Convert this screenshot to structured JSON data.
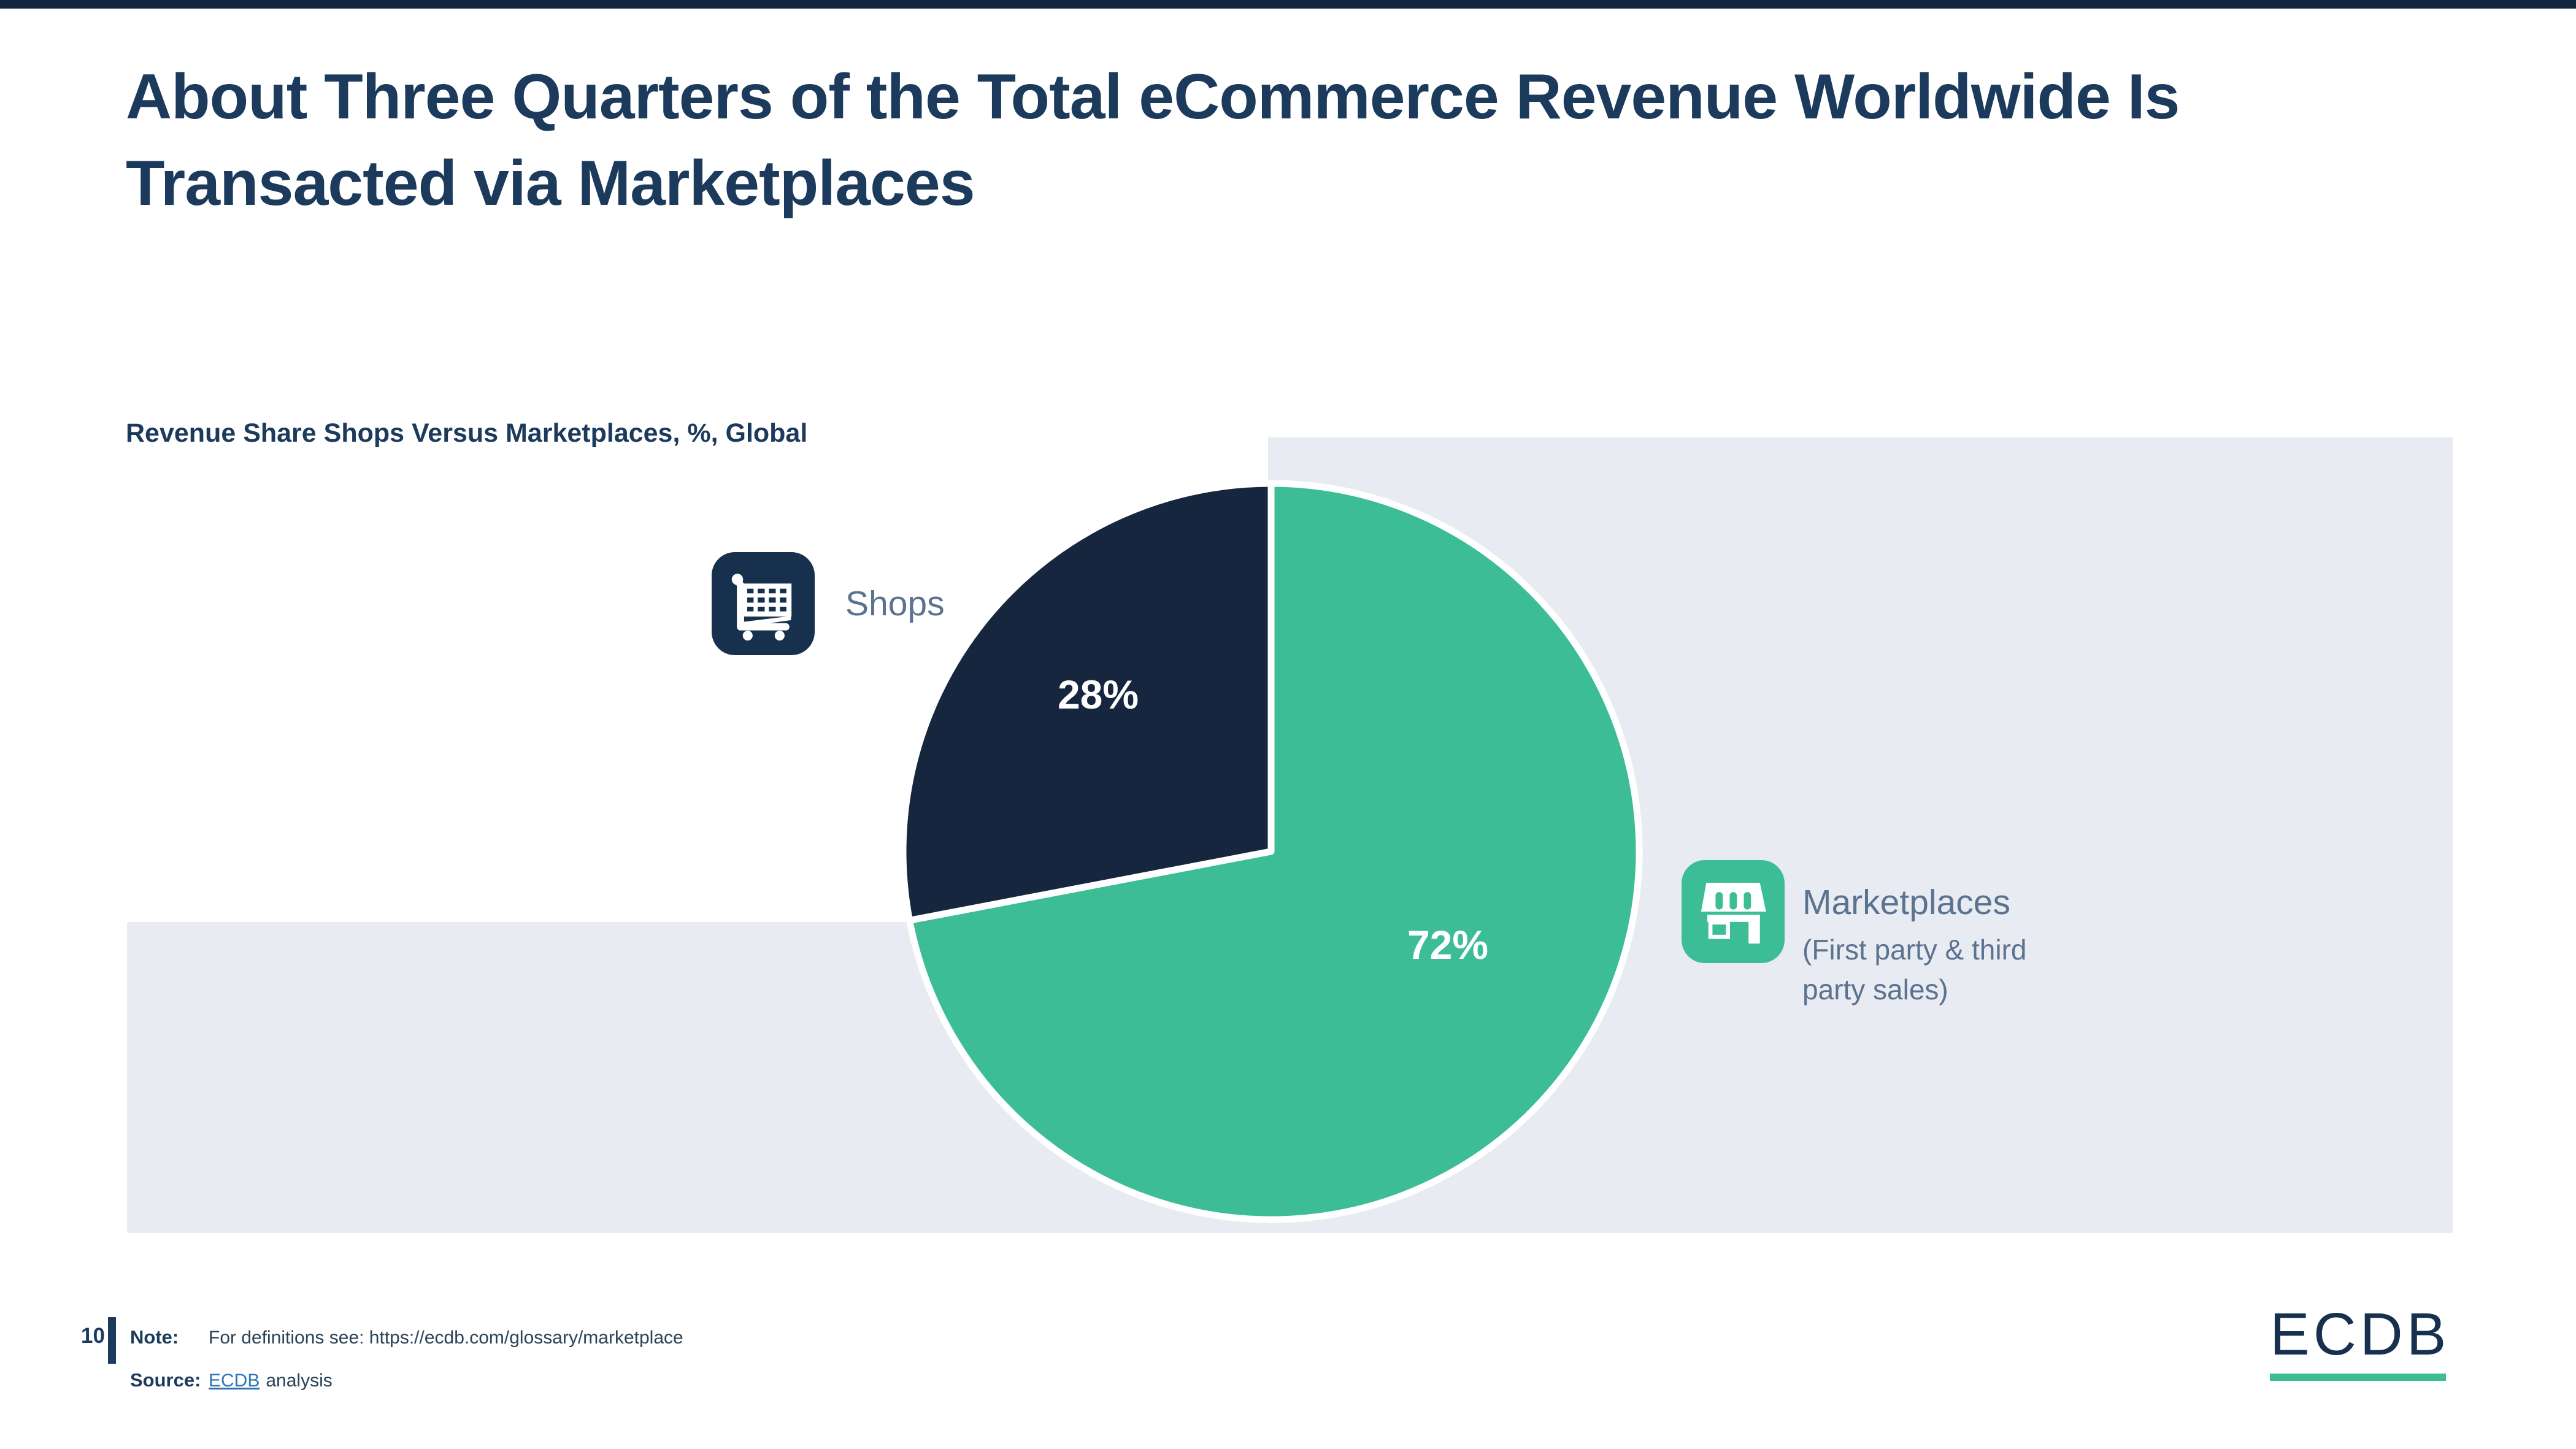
{
  "page": {
    "top_bar_color": "#13283f",
    "title_line1": "About Three Quarters of the Total eCommerce Revenue Worldwide Is",
    "title_line2": "Transacted via Marketplaces",
    "page_number": "10",
    "footer": {
      "note_label": "Note:",
      "note_text": "For definitions see: https://ecdb.com/glossary/marketplace",
      "source_label": "Source:",
      "source_link_text": "ECDB",
      "source_rest_text": "analysis"
    },
    "logo": {
      "text": "ECDB",
      "underline_color": "#3dbd96"
    }
  },
  "chart_data": {
    "type": "pie",
    "title": "Revenue Share Shops Versus Marketplaces, %, Global",
    "unit": "%",
    "region": "Global",
    "start_angle_deg": 0,
    "direction": "counterclockwise",
    "legend_position": "beside-slices",
    "slices": [
      {
        "label": "Shops",
        "value": 28,
        "value_label": "28%",
        "color": "#15263e",
        "icon": "shopping-cart-icon",
        "icon_bg": "#16304d"
      },
      {
        "label": "Marketplaces",
        "sublabel": "(First party & third party sales)",
        "value": 72,
        "value_label": "72%",
        "color": "#3dbd96",
        "icon": "storefront-icon",
        "icon_bg": "#3dbd96"
      }
    ]
  }
}
